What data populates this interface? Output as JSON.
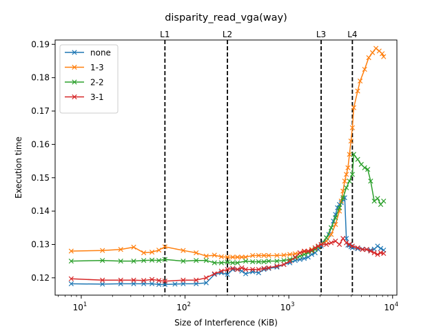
{
  "chart_data": {
    "type": "line",
    "title": "disparity_read_vga(way)",
    "xlabel": "Size of Interference (KiB)",
    "ylabel": "Execution time",
    "xscale": "log",
    "xlim": [
      5.6,
      11000
    ],
    "ylim": [
      0.1148,
      0.1913
    ],
    "x_ticks": [
      10,
      100,
      1000,
      10000
    ],
    "x_tick_labels": [
      {
        "base": "10",
        "exp": "1"
      },
      {
        "base": "10",
        "exp": "2"
      },
      {
        "base": "10",
        "exp": "3"
      },
      {
        "base": "10",
        "exp": "4"
      }
    ],
    "y_ticks": [
      0.12,
      0.13,
      0.14,
      0.15,
      0.16,
      0.17,
      0.18,
      0.19
    ],
    "y_tick_labels": [
      "0.12",
      "0.13",
      "0.14",
      "0.15",
      "0.16",
      "0.17",
      "0.18",
      "0.19"
    ],
    "grid": false,
    "legend_position": "top-left",
    "vlines": [
      {
        "label": "L1",
        "x": 64
      },
      {
        "label": "L2",
        "x": 256
      },
      {
        "label": "L3",
        "x": 2048
      },
      {
        "label": "L4",
        "x": 4096
      }
    ],
    "series": [
      {
        "name": "none",
        "color": "#1f77b4",
        "points": [
          [
            8,
            0.1182
          ],
          [
            16,
            0.1181
          ],
          [
            24,
            0.1182
          ],
          [
            32,
            0.1182
          ],
          [
            40,
            0.1182
          ],
          [
            48,
            0.1182
          ],
          [
            56,
            0.118
          ],
          [
            64,
            0.118
          ],
          [
            80,
            0.1181
          ],
          [
            96,
            0.1182
          ],
          [
            128,
            0.1182
          ],
          [
            160,
            0.1185
          ],
          [
            192,
            0.121
          ],
          [
            224,
            0.1215
          ],
          [
            256,
            0.121
          ],
          [
            288,
            0.1225
          ],
          [
            320,
            0.1225
          ],
          [
            352,
            0.122
          ],
          [
            384,
            0.1212
          ],
          [
            448,
            0.1218
          ],
          [
            512,
            0.1215
          ],
          [
            576,
            0.1225
          ],
          [
            640,
            0.1228
          ],
          [
            768,
            0.1232
          ],
          [
            896,
            0.124
          ],
          [
            1024,
            0.1245
          ],
          [
            1152,
            0.1252
          ],
          [
            1280,
            0.1255
          ],
          [
            1408,
            0.1258
          ],
          [
            1536,
            0.1262
          ],
          [
            1664,
            0.127
          ],
          [
            1792,
            0.1275
          ],
          [
            1920,
            0.1285
          ],
          [
            2048,
            0.1295
          ],
          [
            2176,
            0.1305
          ],
          [
            2304,
            0.132
          ],
          [
            2432,
            0.133
          ],
          [
            2560,
            0.135
          ],
          [
            2688,
            0.137
          ],
          [
            2816,
            0.139
          ],
          [
            2944,
            0.141
          ],
          [
            3072,
            0.142
          ],
          [
            3200,
            0.1425
          ],
          [
            3328,
            0.1435
          ],
          [
            3456,
            0.144
          ],
          [
            3584,
            0.1318
          ],
          [
            3712,
            0.1298
          ],
          [
            3840,
            0.1297
          ],
          [
            3968,
            0.1293
          ],
          [
            4096,
            0.129
          ],
          [
            4608,
            0.1287
          ],
          [
            5120,
            0.1286
          ],
          [
            5632,
            0.1285
          ],
          [
            6144,
            0.1283
          ],
          [
            6656,
            0.1286
          ],
          [
            7168,
            0.1295
          ],
          [
            7680,
            0.1288
          ],
          [
            8192,
            0.1283
          ]
        ]
      },
      {
        "name": "1-3",
        "color": "#ff7f0e",
        "points": [
          [
            8,
            0.128
          ],
          [
            16,
            0.1282
          ],
          [
            24,
            0.1285
          ],
          [
            32,
            0.1292
          ],
          [
            40,
            0.1275
          ],
          [
            48,
            0.1277
          ],
          [
            56,
            0.1283
          ],
          [
            64,
            0.1293
          ],
          [
            96,
            0.1282
          ],
          [
            128,
            0.1275
          ],
          [
            160,
            0.1265
          ],
          [
            192,
            0.1268
          ],
          [
            224,
            0.1263
          ],
          [
            256,
            0.1262
          ],
          [
            288,
            0.1262
          ],
          [
            320,
            0.1262
          ],
          [
            352,
            0.1262
          ],
          [
            384,
            0.1262
          ],
          [
            448,
            0.1267
          ],
          [
            512,
            0.1267
          ],
          [
            576,
            0.1267
          ],
          [
            640,
            0.1267
          ],
          [
            768,
            0.1267
          ],
          [
            896,
            0.1268
          ],
          [
            1024,
            0.127
          ],
          [
            1152,
            0.1272
          ],
          [
            1280,
            0.1275
          ],
          [
            1408,
            0.1278
          ],
          [
            1536,
            0.128
          ],
          [
            1664,
            0.1285
          ],
          [
            1792,
            0.129
          ],
          [
            1920,
            0.1295
          ],
          [
            2048,
            0.13
          ],
          [
            2304,
            0.131
          ],
          [
            2560,
            0.133
          ],
          [
            2816,
            0.136
          ],
          [
            3072,
            0.14
          ],
          [
            3200,
            0.143
          ],
          [
            3328,
            0.146
          ],
          [
            3456,
            0.149
          ],
          [
            3584,
            0.151
          ],
          [
            3712,
            0.153
          ],
          [
            3840,
            0.157
          ],
          [
            3968,
            0.161
          ],
          [
            4096,
            0.165
          ],
          [
            4224,
            0.171
          ],
          [
            4608,
            0.176
          ],
          [
            4864,
            0.179
          ],
          [
            5376,
            0.1825
          ],
          [
            5888,
            0.186
          ],
          [
            6400,
            0.1875
          ],
          [
            6912,
            0.1888
          ],
          [
            7424,
            0.188
          ],
          [
            7936,
            0.1872
          ],
          [
            8192,
            0.1863
          ]
        ]
      },
      {
        "name": "2-2",
        "color": "#2ca02c",
        "points": [
          [
            8,
            0.125
          ],
          [
            16,
            0.1252
          ],
          [
            24,
            0.125
          ],
          [
            32,
            0.125
          ],
          [
            40,
            0.1252
          ],
          [
            48,
            0.1253
          ],
          [
            56,
            0.1252
          ],
          [
            64,
            0.1255
          ],
          [
            96,
            0.125
          ],
          [
            128,
            0.1252
          ],
          [
            160,
            0.1252
          ],
          [
            192,
            0.1245
          ],
          [
            224,
            0.1245
          ],
          [
            256,
            0.1247
          ],
          [
            288,
            0.1245
          ],
          [
            320,
            0.1245
          ],
          [
            384,
            0.125
          ],
          [
            448,
            0.1248
          ],
          [
            512,
            0.1248
          ],
          [
            576,
            0.1248
          ],
          [
            640,
            0.125
          ],
          [
            768,
            0.125
          ],
          [
            896,
            0.1252
          ],
          [
            1024,
            0.1255
          ],
          [
            1152,
            0.126
          ],
          [
            1280,
            0.1265
          ],
          [
            1408,
            0.127
          ],
          [
            1536,
            0.1275
          ],
          [
            1664,
            0.128
          ],
          [
            1792,
            0.1285
          ],
          [
            1920,
            0.1292
          ],
          [
            2048,
            0.13
          ],
          [
            2304,
            0.132
          ],
          [
            2560,
            0.135
          ],
          [
            2816,
            0.138
          ],
          [
            3072,
            0.141
          ],
          [
            3328,
            0.144
          ],
          [
            3584,
            0.147
          ],
          [
            3840,
            0.149
          ],
          [
            4096,
            0.151
          ],
          [
            4224,
            0.157
          ],
          [
            4608,
            0.1555
          ],
          [
            4992,
            0.154
          ],
          [
            5376,
            0.153
          ],
          [
            5760,
            0.1525
          ],
          [
            6144,
            0.149
          ],
          [
            6656,
            0.143
          ],
          [
            7168,
            0.1438
          ],
          [
            7680,
            0.142
          ],
          [
            8192,
            0.143
          ]
        ]
      },
      {
        "name": "3-1",
        "color": "#d62728",
        "points": [
          [
            8,
            0.1197
          ],
          [
            16,
            0.1193
          ],
          [
            24,
            0.1193
          ],
          [
            32,
            0.1193
          ],
          [
            40,
            0.1192
          ],
          [
            48,
            0.1195
          ],
          [
            56,
            0.1192
          ],
          [
            64,
            0.119
          ],
          [
            96,
            0.1193
          ],
          [
            128,
            0.1193
          ],
          [
            160,
            0.12
          ],
          [
            192,
            0.1212
          ],
          [
            224,
            0.122
          ],
          [
            256,
            0.1225
          ],
          [
            288,
            0.1228
          ],
          [
            320,
            0.1225
          ],
          [
            352,
            0.123
          ],
          [
            384,
            0.1225
          ],
          [
            448,
            0.1225
          ],
          [
            512,
            0.1225
          ],
          [
            576,
            0.1228
          ],
          [
            640,
            0.123
          ],
          [
            768,
            0.1235
          ],
          [
            896,
            0.124
          ],
          [
            1024,
            0.125
          ],
          [
            1152,
            0.1262
          ],
          [
            1280,
            0.1275
          ],
          [
            1408,
            0.128
          ],
          [
            1536,
            0.128
          ],
          [
            1664,
            0.1283
          ],
          [
            1792,
            0.129
          ],
          [
            1920,
            0.1295
          ],
          [
            2048,
            0.13
          ],
          [
            2304,
            0.13
          ],
          [
            2560,
            0.1305
          ],
          [
            2816,
            0.131
          ],
          [
            3072,
            0.13
          ],
          [
            3328,
            0.1318
          ],
          [
            3584,
            0.1305
          ],
          [
            3840,
            0.13
          ],
          [
            4096,
            0.1295
          ],
          [
            4608,
            0.129
          ],
          [
            5120,
            0.1285
          ],
          [
            5632,
            0.1285
          ],
          [
            6144,
            0.128
          ],
          [
            6656,
            0.1275
          ],
          [
            7168,
            0.127
          ],
          [
            7680,
            0.1275
          ],
          [
            8192,
            0.1273
          ]
        ]
      }
    ]
  }
}
